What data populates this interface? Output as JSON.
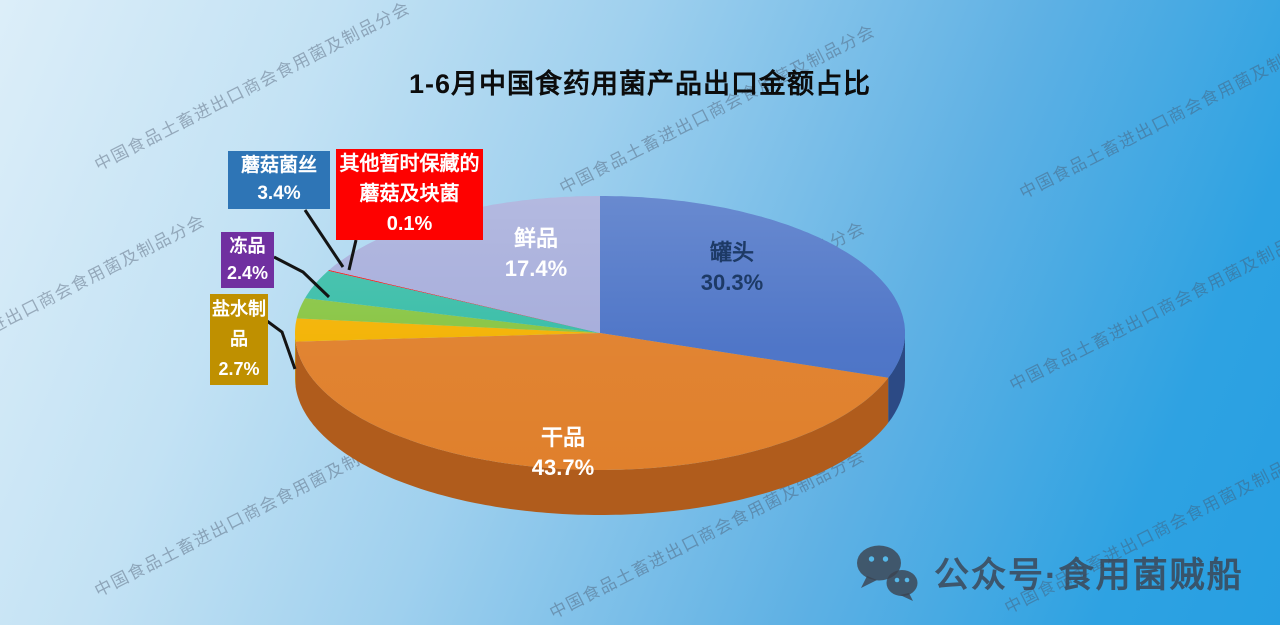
{
  "title": "1-6月中国食药用菌产品出口金额占比",
  "watermark": {
    "text": "中国食品土畜进出口商会食用菌及制品分会"
  },
  "footer": {
    "icon": "wechat-icon",
    "brand_prefix": "公众号",
    "separator": "·",
    "brand_name": "食用菌贼船"
  },
  "chart_data": {
    "type": "pie",
    "projection": "3d",
    "title": "1-6月中国食药用菌产品出口金额占比",
    "unit": "percent",
    "start_angle_deg": 90,
    "direction": "clockwise",
    "legend_position": "none",
    "slices": [
      {
        "label": "罐头",
        "value": 30.3,
        "pct": "30.3%",
        "color": "#4a72c6",
        "side_color": "#2c4a85",
        "label_placement": "inside",
        "label_color": "#1d3a66"
      },
      {
        "label": "干品",
        "value": 43.7,
        "pct": "43.7%",
        "color": "#e0802c",
        "side_color": "#b05c1c",
        "label_placement": "inside",
        "label_color": "#ffffff"
      },
      {
        "label": "盐水制品",
        "value": 2.7,
        "pct": "2.7%",
        "color": "#f3b200",
        "side_color": "#c78f00",
        "label_placement": "callout",
        "callout_bg": "#bf9000"
      },
      {
        "label": "冻品",
        "value": 2.4,
        "pct": "2.4%",
        "color": "#86c440",
        "side_color": "#639a2a",
        "label_placement": "callout",
        "callout_bg": "#7030a0"
      },
      {
        "label": "蘑菇菌丝",
        "value": 3.4,
        "pct": "3.4%",
        "color": "#35bca6",
        "side_color": "#1e8d79",
        "label_placement": "callout",
        "callout_bg": "#2e75b6"
      },
      {
        "label": "其他暂时保藏的蘑菇及块菌",
        "value": 0.1,
        "pct": "0.1%",
        "color": "#fe0100",
        "side_color": "#b00000",
        "label_placement": "callout",
        "callout_bg": "#fe0100"
      },
      {
        "label": "鲜品",
        "value": 17.4,
        "pct": "17.4%",
        "color": "#a4abda",
        "side_color": "#7c84b8",
        "label_placement": "inside",
        "label_color": "#ffffff"
      }
    ]
  }
}
